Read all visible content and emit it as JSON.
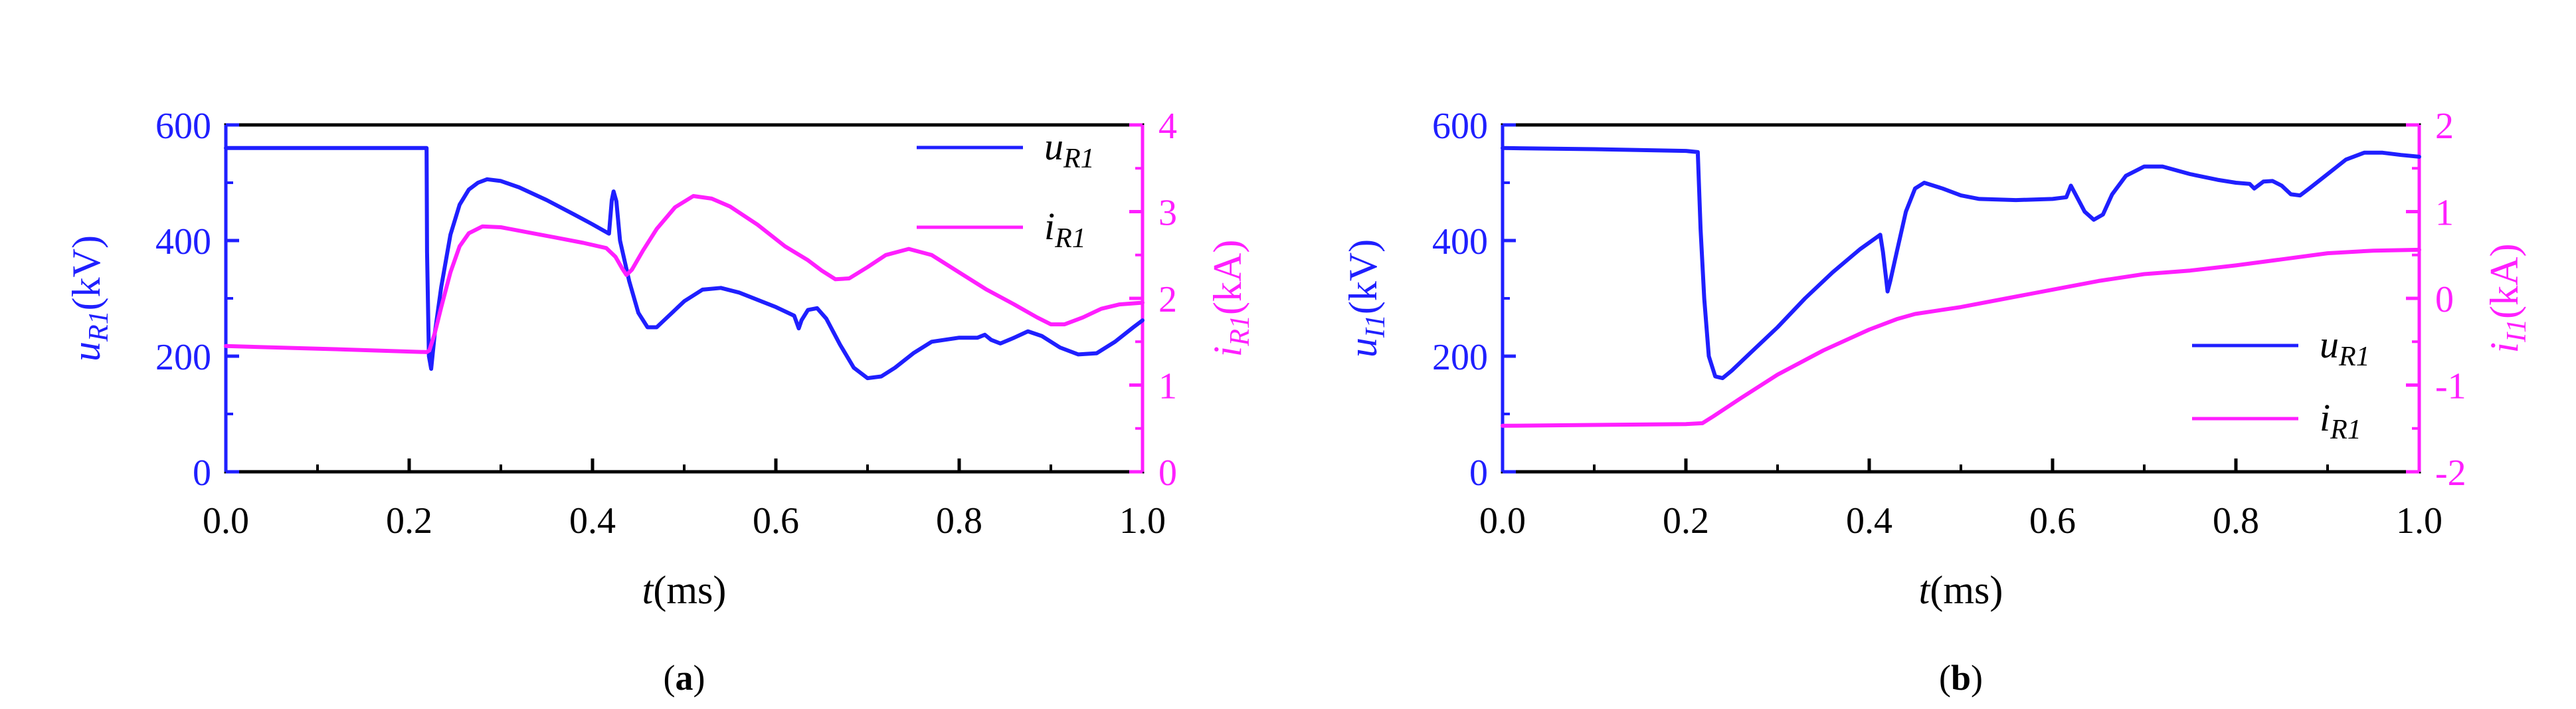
{
  "chart_data": [
    {
      "type": "line",
      "caption": "(a)",
      "caption_letter": "a",
      "xlabel_var": "t",
      "xlabel_unit": "(ms)",
      "xlim": [
        0,
        1.0
      ],
      "xticks": [
        "0.0",
        "0.2",
        "0.4",
        "0.6",
        "0.8",
        "1.0"
      ],
      "y_left": {
        "label_var": "u",
        "label_sub": "R1",
        "label_unit": "(kV)",
        "lim": [
          0,
          600
        ],
        "ticks": [
          "0",
          "200",
          "400",
          "600"
        ],
        "color": "#1f1fff"
      },
      "y_right": {
        "label_var": "i",
        "label_sub": "R1",
        "label_unit": "(kA)",
        "lim": [
          0,
          4
        ],
        "ticks": [
          "0",
          "1",
          "2",
          "3",
          "4"
        ],
        "color": "#ff1fff"
      },
      "legend_position": "top-right",
      "series": [
        {
          "name_var": "u",
          "name_sub": "R1",
          "axis": "left",
          "color": "#1f1fff",
          "points": [
            [
              0,
              560
            ],
            [
              0.219,
              560
            ],
            [
              0.2195,
              380
            ],
            [
              0.2215,
              200
            ],
            [
              0.224,
              178
            ],
            [
              0.228,
              240
            ],
            [
              0.235,
              320
            ],
            [
              0.245,
              410
            ],
            [
              0.255,
              462
            ],
            [
              0.265,
              488
            ],
            [
              0.275,
              500
            ],
            [
              0.285,
              506
            ],
            [
              0.3,
              503
            ],
            [
              0.32,
              492
            ],
            [
              0.35,
              470
            ],
            [
              0.38,
              445
            ],
            [
              0.4,
              428
            ],
            [
              0.418,
              412
            ],
            [
              0.421,
              470
            ],
            [
              0.423,
              485
            ],
            [
              0.426,
              468
            ],
            [
              0.43,
              400
            ],
            [
              0.44,
              330
            ],
            [
              0.45,
              275
            ],
            [
              0.46,
              250
            ],
            [
              0.47,
              250
            ],
            [
              0.48,
              265
            ],
            [
              0.5,
              295
            ],
            [
              0.52,
              315
            ],
            [
              0.54,
              318
            ],
            [
              0.56,
              310
            ],
            [
              0.6,
              285
            ],
            [
              0.62,
              270
            ],
            [
              0.625,
              248
            ],
            [
              0.628,
              262
            ],
            [
              0.635,
              280
            ],
            [
              0.645,
              283
            ],
            [
              0.655,
              265
            ],
            [
              0.67,
              220
            ],
            [
              0.685,
              180
            ],
            [
              0.7,
              162
            ],
            [
              0.715,
              165
            ],
            [
              0.73,
              180
            ],
            [
              0.75,
              205
            ],
            [
              0.77,
              225
            ],
            [
              0.8,
              232
            ],
            [
              0.82,
              232
            ],
            [
              0.828,
              237
            ],
            [
              0.835,
              228
            ],
            [
              0.845,
              222
            ],
            [
              0.86,
              232
            ],
            [
              0.875,
              243
            ],
            [
              0.89,
              235
            ],
            [
              0.91,
              215
            ],
            [
              0.93,
              203
            ],
            [
              0.95,
              205
            ],
            [
              0.97,
              225
            ],
            [
              0.99,
              250
            ],
            [
              1.0,
              262
            ]
          ]
        },
        {
          "name_var": "i",
          "name_sub": "R1",
          "axis": "right",
          "color": "#ff1fff",
          "points": [
            [
              0,
              1.45
            ],
            [
              0.1,
              1.42
            ],
            [
              0.219,
              1.38
            ],
            [
              0.222,
              1.4
            ],
            [
              0.228,
              1.6
            ],
            [
              0.235,
              1.9
            ],
            [
              0.245,
              2.3
            ],
            [
              0.255,
              2.6
            ],
            [
              0.265,
              2.75
            ],
            [
              0.28,
              2.83
            ],
            [
              0.3,
              2.82
            ],
            [
              0.33,
              2.76
            ],
            [
              0.36,
              2.7
            ],
            [
              0.39,
              2.64
            ],
            [
              0.415,
              2.58
            ],
            [
              0.425,
              2.48
            ],
            [
              0.432,
              2.35
            ],
            [
              0.437,
              2.27
            ],
            [
              0.443,
              2.33
            ],
            [
              0.455,
              2.55
            ],
            [
              0.47,
              2.8
            ],
            [
              0.49,
              3.05
            ],
            [
              0.51,
              3.18
            ],
            [
              0.53,
              3.15
            ],
            [
              0.55,
              3.06
            ],
            [
              0.58,
              2.85
            ],
            [
              0.61,
              2.6
            ],
            [
              0.635,
              2.44
            ],
            [
              0.65,
              2.32
            ],
            [
              0.665,
              2.22
            ],
            [
              0.68,
              2.23
            ],
            [
              0.7,
              2.36
            ],
            [
              0.72,
              2.5
            ],
            [
              0.745,
              2.57
            ],
            [
              0.77,
              2.5
            ],
            [
              0.8,
              2.3
            ],
            [
              0.83,
              2.1
            ],
            [
              0.86,
              1.93
            ],
            [
              0.885,
              1.78
            ],
            [
              0.9,
              1.7
            ],
            [
              0.915,
              1.7
            ],
            [
              0.935,
              1.78
            ],
            [
              0.955,
              1.88
            ],
            [
              0.975,
              1.93
            ],
            [
              1.0,
              1.95
            ]
          ]
        }
      ]
    },
    {
      "type": "line",
      "caption": "(b)",
      "caption_letter": "b",
      "xlabel_var": "t",
      "xlabel_unit": "(ms)",
      "xlim": [
        0,
        1.0
      ],
      "xticks": [
        "0.0",
        "0.2",
        "0.4",
        "0.6",
        "0.8",
        "1.0"
      ],
      "y_left": {
        "label_var": "u",
        "label_sub": "I1",
        "label_unit": "(kV)",
        "lim": [
          0,
          600
        ],
        "ticks": [
          "0",
          "200",
          "400",
          "600"
        ],
        "color": "#1f1fff"
      },
      "y_right": {
        "label_var": "i",
        "label_sub": "I1",
        "label_unit": "(kA)",
        "lim": [
          -2,
          2
        ],
        "ticks": [
          "-2",
          "-1",
          "0",
          "1",
          "2"
        ],
        "color": "#ff1fff"
      },
      "legend_position": "bottom-right",
      "series": [
        {
          "name_var": "u",
          "name_sub": "R1",
          "axis": "left",
          "color": "#1f1fff",
          "points": [
            [
              0,
              560
            ],
            [
              0.1,
              558
            ],
            [
              0.2,
              555
            ],
            [
              0.213,
              553
            ],
            [
              0.216,
              420
            ],
            [
              0.22,
              300
            ],
            [
              0.225,
              200
            ],
            [
              0.232,
              165
            ],
            [
              0.24,
              162
            ],
            [
              0.25,
              175
            ],
            [
              0.27,
              205
            ],
            [
              0.3,
              250
            ],
            [
              0.33,
              300
            ],
            [
              0.36,
              345
            ],
            [
              0.39,
              385
            ],
            [
              0.412,
              410
            ],
            [
              0.415,
              380
            ],
            [
              0.418,
              340
            ],
            [
              0.42,
              312
            ],
            [
              0.423,
              330
            ],
            [
              0.43,
              380
            ],
            [
              0.44,
              450
            ],
            [
              0.45,
              490
            ],
            [
              0.46,
              500
            ],
            [
              0.48,
              490
            ],
            [
              0.5,
              478
            ],
            [
              0.52,
              472
            ],
            [
              0.56,
              470
            ],
            [
              0.6,
              472
            ],
            [
              0.615,
              475
            ],
            [
              0.62,
              495
            ],
            [
              0.625,
              480
            ],
            [
              0.635,
              450
            ],
            [
              0.645,
              436
            ],
            [
              0.655,
              445
            ],
            [
              0.665,
              480
            ],
            [
              0.68,
              512
            ],
            [
              0.7,
              528
            ],
            [
              0.72,
              528
            ],
            [
              0.75,
              515
            ],
            [
              0.78,
              505
            ],
            [
              0.8,
              500
            ],
            [
              0.815,
              498
            ],
            [
              0.82,
              490
            ],
            [
              0.83,
              502
            ],
            [
              0.84,
              503
            ],
            [
              0.85,
              495
            ],
            [
              0.86,
              480
            ],
            [
              0.87,
              478
            ],
            [
              0.88,
              490
            ],
            [
              0.9,
              515
            ],
            [
              0.92,
              540
            ],
            [
              0.94,
              552
            ],
            [
              0.96,
              552
            ],
            [
              0.98,
              548
            ],
            [
              1.0,
              545
            ]
          ]
        },
        {
          "name_var": "i",
          "name_sub": "R1",
          "axis": "right",
          "color": "#ff1fff",
          "points": [
            [
              0,
              -1.47
            ],
            [
              0.1,
              -1.46
            ],
            [
              0.2,
              -1.45
            ],
            [
              0.218,
              -1.44
            ],
            [
              0.23,
              -1.36
            ],
            [
              0.26,
              -1.15
            ],
            [
              0.3,
              -0.88
            ],
            [
              0.35,
              -0.6
            ],
            [
              0.4,
              -0.36
            ],
            [
              0.43,
              -0.24
            ],
            [
              0.45,
              -0.18
            ],
            [
              0.5,
              -0.1
            ],
            [
              0.55,
              0.0
            ],
            [
              0.6,
              0.1
            ],
            [
              0.65,
              0.2
            ],
            [
              0.7,
              0.28
            ],
            [
              0.75,
              0.32
            ],
            [
              0.8,
              0.38
            ],
            [
              0.85,
              0.45
            ],
            [
              0.9,
              0.52
            ],
            [
              0.95,
              0.55
            ],
            [
              1.0,
              0.56
            ]
          ]
        }
      ]
    }
  ]
}
